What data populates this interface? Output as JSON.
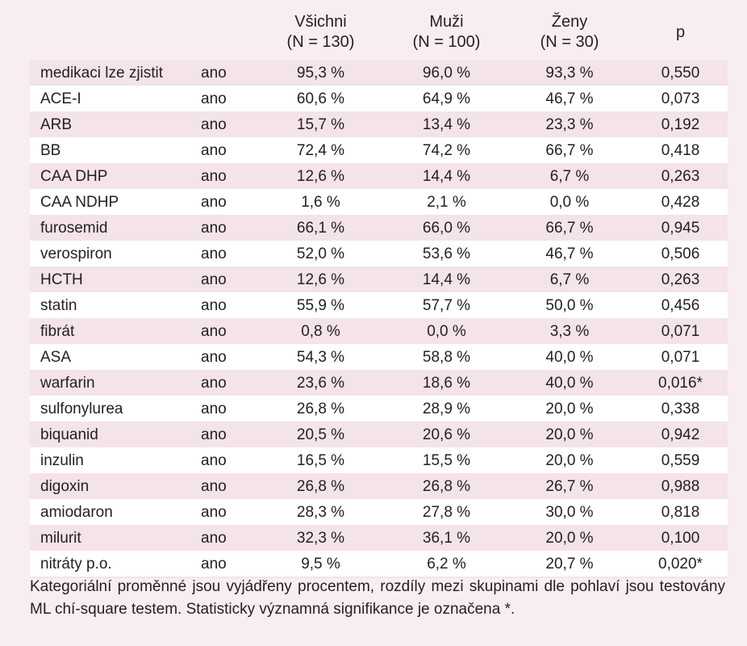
{
  "header": {
    "col_all_1": "Všichni",
    "col_all_2": "(N = 130)",
    "col_men_1": "Muži",
    "col_men_2": "(N = 100)",
    "col_women_1": "Ženy",
    "col_women_2": "(N = 30)",
    "col_p": "p"
  },
  "rows": [
    {
      "name": "medikaci lze zjistit",
      "ans": "ano",
      "all": "95,3 %",
      "men": "96,0 %",
      "women": "93,3 %",
      "p": "0,550"
    },
    {
      "name": "ACE-I",
      "ans": "ano",
      "all": "60,6 %",
      "men": "64,9 %",
      "women": "46,7 %",
      "p": "0,073"
    },
    {
      "name": "ARB",
      "ans": "ano",
      "all": "15,7 %",
      "men": "13,4 %",
      "women": "23,3 %",
      "p": "0,192"
    },
    {
      "name": "BB",
      "ans": "ano",
      "all": "72,4 %",
      "men": "74,2 %",
      "women": "66,7 %",
      "p": "0,418"
    },
    {
      "name": "CAA DHP",
      "ans": "ano",
      "all": "12,6 %",
      "men": "14,4 %",
      "women": "6,7 %",
      "p": "0,263"
    },
    {
      "name": "CAA NDHP",
      "ans": "ano",
      "all": "1,6 %",
      "men": "2,1 %",
      "women": "0,0 %",
      "p": "0,428"
    },
    {
      "name": "furosemid",
      "ans": "ano",
      "all": "66,1 %",
      "men": "66,0 %",
      "women": "66,7 %",
      "p": "0,945"
    },
    {
      "name": "verospiron",
      "ans": "ano",
      "all": "52,0 %",
      "men": "53,6 %",
      "women": "46,7 %",
      "p": "0,506"
    },
    {
      "name": "HCTH",
      "ans": "ano",
      "all": "12,6 %",
      "men": "14,4 %",
      "women": "6,7 %",
      "p": "0,263"
    },
    {
      "name": "statin",
      "ans": "ano",
      "all": "55,9 %",
      "men": "57,7 %",
      "women": "50,0 %",
      "p": "0,456"
    },
    {
      "name": "fibrát",
      "ans": "ano",
      "all": "0,8 %",
      "men": "0,0 %",
      "women": "3,3 %",
      "p": "0,071"
    },
    {
      "name": "ASA",
      "ans": "ano",
      "all": "54,3 %",
      "men": "58,8 %",
      "women": "40,0 %",
      "p": "0,071"
    },
    {
      "name": "warfarin",
      "ans": "ano",
      "all": "23,6 %",
      "men": "18,6 %",
      "women": "40,0 %",
      "p": "0,016*"
    },
    {
      "name": "sulfonylurea",
      "ans": "ano",
      "all": "26,8 %",
      "men": "28,9 %",
      "women": "20,0 %",
      "p": "0,338"
    },
    {
      "name": "biquanid",
      "ans": "ano",
      "all": "20,5 %",
      "men": "20,6 %",
      "women": "20,0 %",
      "p": "0,942"
    },
    {
      "name": "inzulin",
      "ans": "ano",
      "all": "16,5 %",
      "men": "15,5 %",
      "women": "20,0 %",
      "p": "0,559"
    },
    {
      "name": "digoxin",
      "ans": "ano",
      "all": "26,8 %",
      "men": "26,8 %",
      "women": "26,7 %",
      "p": "0,988"
    },
    {
      "name": "amiodaron",
      "ans": "ano",
      "all": "28,3 %",
      "men": "27,8 %",
      "women": "30,0 %",
      "p": "0,818"
    },
    {
      "name": "milurit",
      "ans": "ano",
      "all": "32,3 %",
      "men": "36,1 %",
      "women": "20,0 %",
      "p": "0,100"
    },
    {
      "name": "nitráty p.o.",
      "ans": "ano",
      "all": "9,5 %",
      "men": "6,2 %",
      "women": "20,7 %",
      "p": "0,020*"
    }
  ],
  "footnote": "Kategoriální proměnné jsou vyjádřeny procentem, rozdíly mezi skupinami dle pohlaví jsou testovány ML chí-square testem. Statisticky významná signifikance je označena *.",
  "colors": {
    "panel_bg": "#f8eef2",
    "row_tint": "#f4e3ea",
    "row_plain": "#ffffff",
    "text": "#231f20"
  }
}
